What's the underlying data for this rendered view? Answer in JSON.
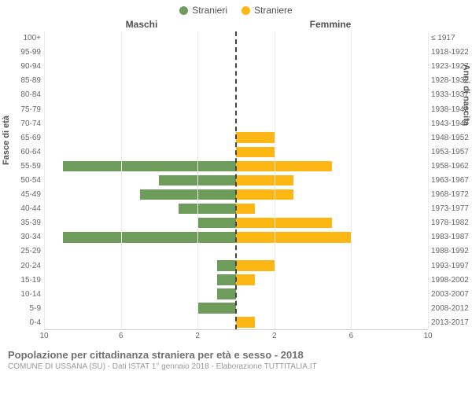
{
  "legend": {
    "male": {
      "label": "Stranieri",
      "color": "#6e9c5b"
    },
    "female": {
      "label": "Straniere",
      "color": "#fdb714"
    }
  },
  "headers": {
    "left": "Maschi",
    "right": "Femmine"
  },
  "axis_labels": {
    "left": "Fasce di età",
    "right": "Anni di nascita"
  },
  "chart": {
    "type": "population-pyramid",
    "xmax": 10,
    "xticks": [
      10,
      6,
      2,
      2,
      6,
      10
    ],
    "grid_color": "#eaeaea",
    "divider_color": "#444444",
    "background_color": "#ffffff",
    "bar_height_pct": 76,
    "age_groups": [
      {
        "age": "0-4",
        "birth": "2013-2017",
        "m": 0,
        "f": 1
      },
      {
        "age": "5-9",
        "birth": "2008-2012",
        "m": 2,
        "f": 0
      },
      {
        "age": "10-14",
        "birth": "2003-2007",
        "m": 1,
        "f": 0
      },
      {
        "age": "15-19",
        "birth": "1998-2002",
        "m": 1,
        "f": 1
      },
      {
        "age": "20-24",
        "birth": "1993-1997",
        "m": 1,
        "f": 2
      },
      {
        "age": "25-29",
        "birth": "1988-1992",
        "m": 0,
        "f": 0
      },
      {
        "age": "30-34",
        "birth": "1983-1987",
        "m": 9,
        "f": 6
      },
      {
        "age": "35-39",
        "birth": "1978-1982",
        "m": 2,
        "f": 5
      },
      {
        "age": "40-44",
        "birth": "1973-1977",
        "m": 3,
        "f": 1
      },
      {
        "age": "45-49",
        "birth": "1968-1972",
        "m": 5,
        "f": 3
      },
      {
        "age": "50-54",
        "birth": "1963-1967",
        "m": 4,
        "f": 3
      },
      {
        "age": "55-59",
        "birth": "1958-1962",
        "m": 9,
        "f": 5
      },
      {
        "age": "60-64",
        "birth": "1953-1957",
        "m": 0,
        "f": 2
      },
      {
        "age": "65-69",
        "birth": "1948-1952",
        "m": 0,
        "f": 2
      },
      {
        "age": "70-74",
        "birth": "1943-1947",
        "m": 0,
        "f": 0
      },
      {
        "age": "75-79",
        "birth": "1938-1942",
        "m": 0,
        "f": 0
      },
      {
        "age": "80-84",
        "birth": "1933-1937",
        "m": 0,
        "f": 0
      },
      {
        "age": "85-89",
        "birth": "1928-1932",
        "m": 0,
        "f": 0
      },
      {
        "age": "90-94",
        "birth": "1923-1927",
        "m": 0,
        "f": 0
      },
      {
        "age": "95-99",
        "birth": "1918-1922",
        "m": 0,
        "f": 0
      },
      {
        "age": "100+",
        "birth": "≤ 1917",
        "m": 0,
        "f": 0
      }
    ]
  },
  "footer": {
    "title": "Popolazione per cittadinanza straniera per età e sesso - 2018",
    "subtitle": "COMUNE DI USSANA (SU) - Dati ISTAT 1° gennaio 2018 - Elaborazione TUTTITALIA.IT"
  }
}
